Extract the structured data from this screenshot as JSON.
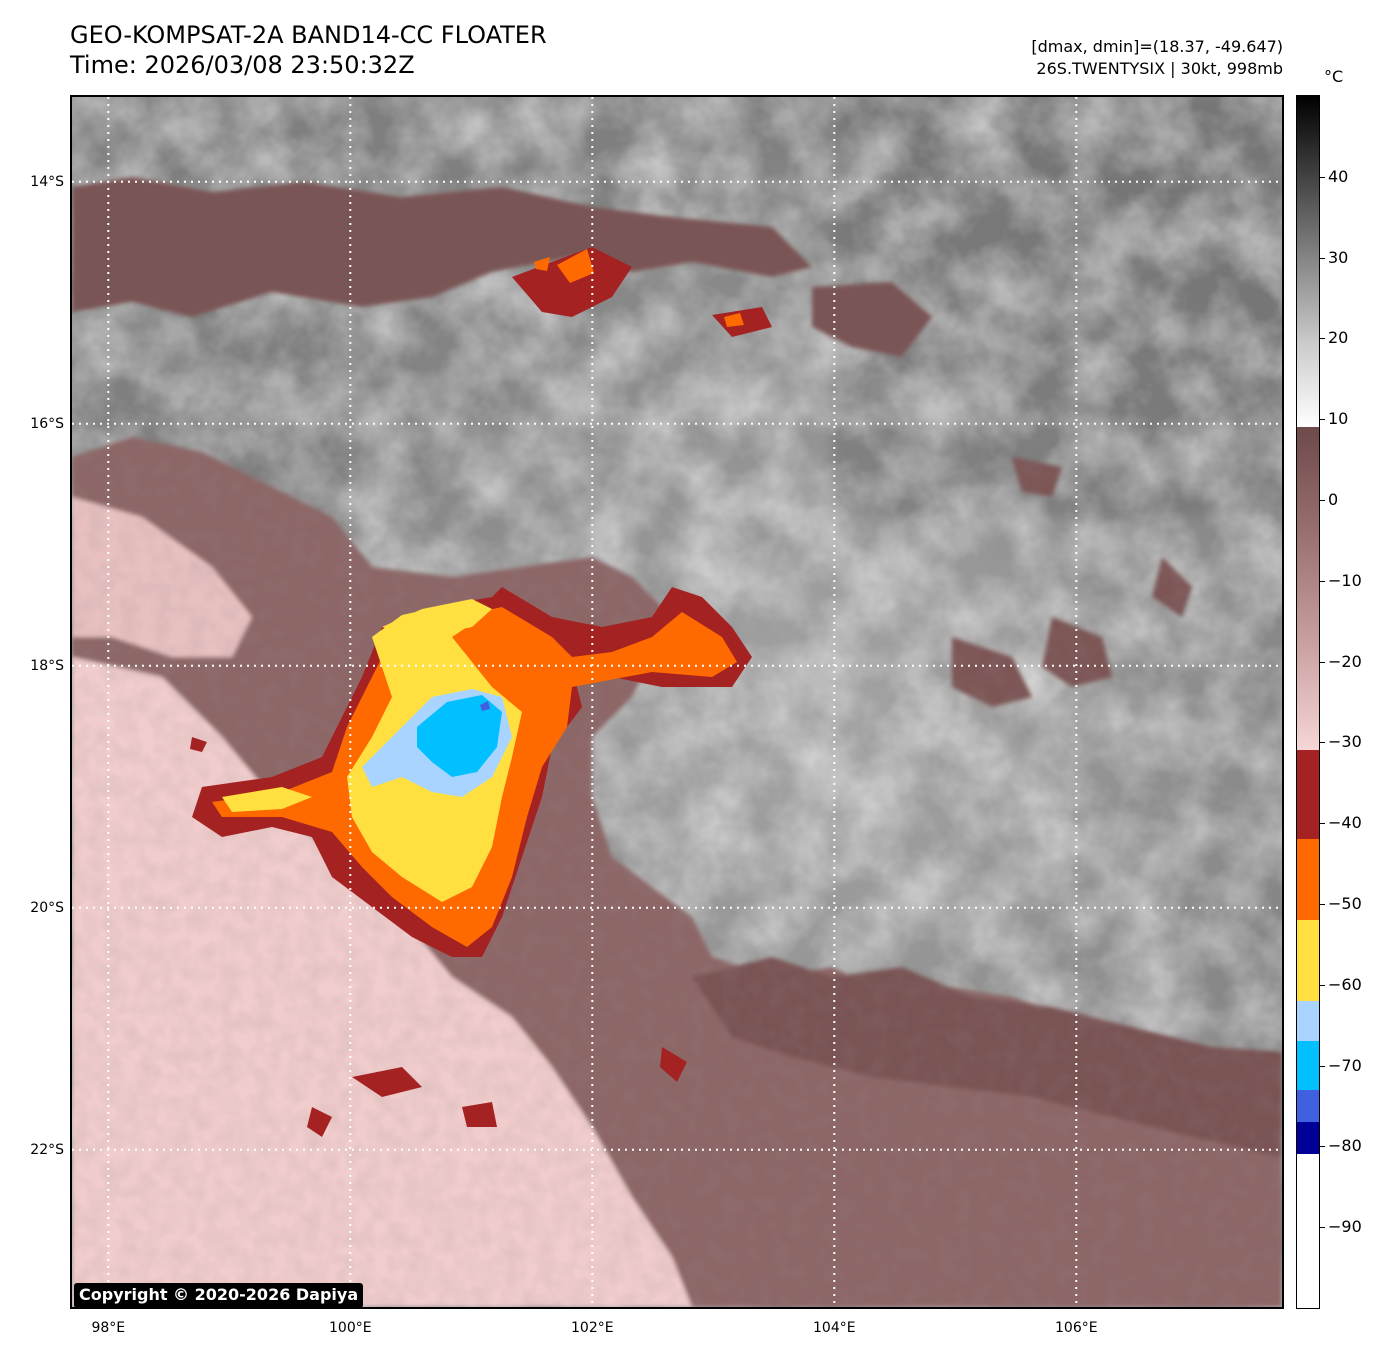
{
  "header": {
    "title_line1": "GEO-KOMPSAT-2A BAND14-CC FLOATER",
    "title_line2": "Time: 2026/03/08 23:50:32Z",
    "meta_line1": "[dmax, dmin]=(18.37, -49.647)",
    "meta_line2": "26S.TWENTYSIX | 30kt, 998mb"
  },
  "map": {
    "extent": {
      "lon_min": 97.7,
      "lon_max": 107.7,
      "lat_min": -23.3,
      "lat_max": -13.3
    },
    "lat_gridlines": [
      {
        "lat": -14,
        "label": "14°S"
      },
      {
        "lat": -16,
        "label": "16°S"
      },
      {
        "lat": -18,
        "label": "18°S"
      },
      {
        "lat": -20,
        "label": "20°S"
      },
      {
        "lat": -22,
        "label": "22°S"
      }
    ],
    "lon_gridlines": [
      {
        "lon": 98,
        "label": "98°E"
      },
      {
        "lon": 100,
        "label": "100°E"
      },
      {
        "lon": 102,
        "label": "102°E"
      },
      {
        "lon": 104,
        "label": "104°E"
      },
      {
        "lon": 106,
        "label": "106°E"
      }
    ],
    "gridline_style": "white dotted",
    "copyright": "Copyright © 2020-2026 Dapiya"
  },
  "colorbar": {
    "unit": "°C",
    "range": [
      -100,
      50
    ],
    "ticks": [
      {
        "value": 40,
        "label": "40"
      },
      {
        "value": 30,
        "label": "30"
      },
      {
        "value": 20,
        "label": "20"
      },
      {
        "value": 10,
        "label": "10"
      },
      {
        "value": 0,
        "label": "0"
      },
      {
        "value": -10,
        "label": "−10"
      },
      {
        "value": -20,
        "label": "−20"
      },
      {
        "value": -30,
        "label": "−30"
      },
      {
        "value": -40,
        "label": "−40"
      },
      {
        "value": -50,
        "label": "−50"
      },
      {
        "value": -60,
        "label": "−60"
      },
      {
        "value": -70,
        "label": "−70"
      },
      {
        "value": -80,
        "label": "−80"
      },
      {
        "value": -90,
        "label": "−90"
      }
    ],
    "segments": [
      {
        "from": 9,
        "to": 50,
        "colors": [
          "#ffffff",
          "#cccccc",
          "#888888",
          "#444444",
          "#000000"
        ]
      },
      {
        "from": -31,
        "to": 9,
        "colors": [
          "#f6d6d6",
          "#c9a0a0",
          "#9a7070",
          "#6e4a4a"
        ]
      },
      {
        "from": -42,
        "to": -31,
        "colors": [
          "#a52222"
        ]
      },
      {
        "from": -52,
        "to": -42,
        "colors": [
          "#ff6a00"
        ]
      },
      {
        "from": -62,
        "to": -52,
        "colors": [
          "#ffe040"
        ]
      },
      {
        "from": -67,
        "to": -62,
        "colors": [
          "#a8d4ff"
        ]
      },
      {
        "from": -73,
        "to": -67,
        "colors": [
          "#00c0ff"
        ]
      },
      {
        "from": -77,
        "to": -73,
        "colors": [
          "#4060e0"
        ]
      },
      {
        "from": -81,
        "to": -77,
        "colors": [
          "#000098"
        ]
      },
      {
        "from": -100,
        "to": -81,
        "colors": [
          "#ffffff"
        ]
      }
    ]
  },
  "palette": {
    "cold_core_blue": "#00c0ff",
    "light_blue": "#a8d4ff",
    "yellow": "#ffe040",
    "orange": "#ff6a00",
    "dark_red": "#a52222",
    "brown": "#6e4a4a",
    "pink": "#f3d2d2",
    "warm_gray": "#8a8a8a"
  }
}
